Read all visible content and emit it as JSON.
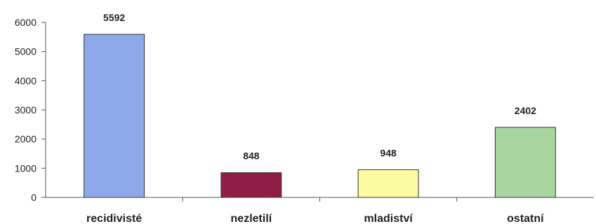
{
  "chart_data": {
    "type": "bar",
    "categories": [
      "recidivisté",
      "nezletilí",
      "mladiství",
      "ostatní"
    ],
    "values": [
      5592,
      848,
      948,
      2402
    ],
    "data_labels": [
      "5592",
      "848",
      "948",
      "2402"
    ],
    "bar_colors": [
      "#8ea9ea",
      "#8f1d45",
      "#fbfba0",
      "#a9d6a0"
    ],
    "ylim": [
      0,
      6000
    ],
    "yticks": [
      0,
      1000,
      2000,
      3000,
      4000,
      5000,
      6000
    ],
    "ytick_labels": [
      "0",
      "1000",
      "2000",
      "3000",
      "4000",
      "5000",
      "6000"
    ],
    "title": "",
    "xlabel": "",
    "ylabel": "",
    "grid": false,
    "legend": false
  }
}
